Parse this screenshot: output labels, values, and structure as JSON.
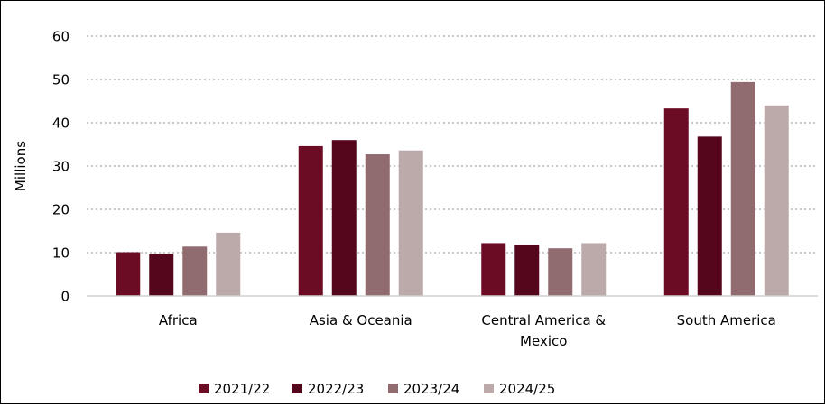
{
  "chart_data": {
    "type": "bar",
    "title": "",
    "xlabel": "",
    "ylabel": "Millions",
    "ylim": [
      0,
      60
    ],
    "yticks": [
      0,
      10,
      20,
      30,
      40,
      50,
      60
    ],
    "grid": true,
    "legend": "bottom",
    "categories": [
      "Africa",
      "Asia & Oceania",
      "Central America & Mexico",
      "South America"
    ],
    "category_label_lines": [
      [
        "Africa"
      ],
      [
        "Asia & Oceania"
      ],
      [
        "Central America &",
        "Mexico"
      ],
      [
        "South America"
      ]
    ],
    "series": [
      {
        "name": "2021/22",
        "color": "#6b0b24",
        "values": [
          10.1,
          34.6,
          12.2,
          43.3
        ]
      },
      {
        "name": "2022/23",
        "color": "#55061d",
        "values": [
          9.7,
          36.0,
          11.8,
          36.8
        ]
      },
      {
        "name": "2023/24",
        "color": "#906b6f",
        "values": [
          11.4,
          32.7,
          11.0,
          49.4
        ]
      },
      {
        "name": "2024/25",
        "color": "#bcaaab",
        "values": [
          14.6,
          33.6,
          12.2,
          44.0
        ]
      }
    ]
  }
}
